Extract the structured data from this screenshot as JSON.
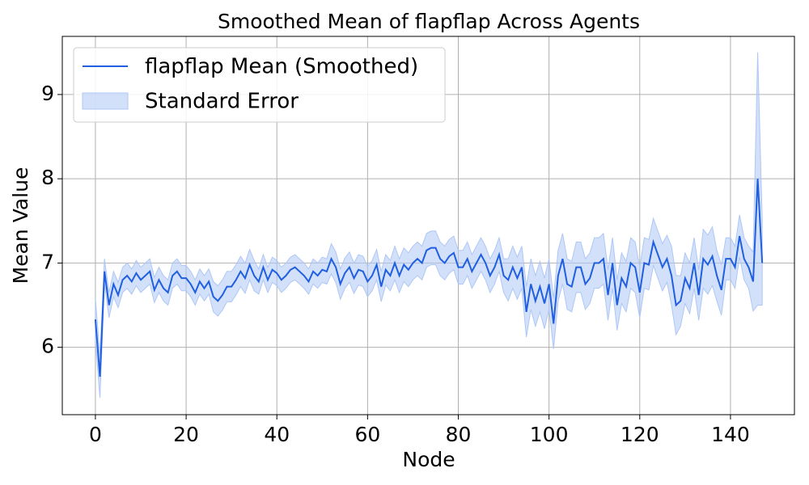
{
  "chart_data": {
    "type": "line",
    "title": "Smoothed Mean of flapflap Across Agents",
    "x_label": "Node",
    "y_label": "Mean Value",
    "x": [
      0,
      1,
      2,
      3,
      4,
      5,
      6,
      7,
      8,
      9,
      10,
      11,
      12,
      13,
      14,
      15,
      16,
      17,
      18,
      19,
      20,
      21,
      22,
      23,
      24,
      25,
      26,
      27,
      28,
      29,
      30,
      31,
      32,
      33,
      34,
      35,
      36,
      37,
      38,
      39,
      40,
      41,
      42,
      43,
      44,
      45,
      46,
      47,
      48,
      49,
      50,
      51,
      52,
      53,
      54,
      55,
      56,
      57,
      58,
      59,
      60,
      61,
      62,
      63,
      64,
      65,
      66,
      67,
      68,
      69,
      70,
      71,
      72,
      73,
      74,
      75,
      76,
      77,
      78,
      79,
      80,
      81,
      82,
      83,
      84,
      85,
      86,
      87,
      88,
      89,
      90,
      91,
      92,
      93,
      94,
      95,
      96,
      97,
      98,
      99,
      100,
      101,
      102,
      103,
      104,
      105,
      106,
      107,
      108,
      109,
      110,
      111,
      112,
      113,
      114,
      115,
      116,
      117,
      118,
      119,
      120,
      121,
      122,
      123,
      124,
      125,
      126,
      127,
      128,
      129,
      130,
      131,
      132,
      133,
      134,
      135,
      136,
      137,
      138,
      139,
      140,
      141,
      142,
      143,
      144,
      145,
      146,
      147
    ],
    "series": [
      {
        "name": "flapflap Mean (Smoothed)",
        "color": "#1f5fe0",
        "values": [
          6.33,
          5.65,
          6.9,
          6.5,
          6.75,
          6.62,
          6.8,
          6.85,
          6.78,
          6.88,
          6.8,
          6.85,
          6.9,
          6.68,
          6.8,
          6.7,
          6.65,
          6.85,
          6.9,
          6.82,
          6.82,
          6.75,
          6.65,
          6.78,
          6.7,
          6.78,
          6.6,
          6.55,
          6.62,
          6.72,
          6.72,
          6.8,
          6.9,
          6.82,
          6.98,
          6.85,
          6.78,
          6.95,
          6.8,
          6.92,
          6.88,
          6.8,
          6.85,
          6.92,
          6.95,
          6.9,
          6.85,
          6.78,
          6.9,
          6.85,
          6.92,
          6.9,
          7.05,
          6.95,
          6.75,
          6.88,
          6.95,
          6.82,
          6.92,
          6.9,
          6.78,
          6.85,
          6.98,
          6.72,
          6.92,
          6.85,
          7.0,
          6.85,
          6.98,
          6.92,
          7.0,
          7.05,
          7.0,
          7.15,
          7.18,
          7.18,
          7.05,
          7.0,
          7.08,
          7.12,
          6.95,
          6.95,
          7.05,
          6.9,
          7.0,
          7.1,
          7.0,
          6.85,
          6.95,
          7.1,
          6.85,
          6.8,
          6.95,
          6.82,
          6.95,
          6.42,
          6.75,
          6.55,
          6.72,
          6.52,
          6.75,
          6.28,
          6.85,
          7.05,
          6.75,
          6.72,
          6.95,
          6.95,
          6.75,
          6.82,
          7.0,
          7.0,
          7.05,
          6.62,
          7.0,
          6.5,
          6.82,
          6.72,
          7.0,
          6.95,
          6.65,
          7.0,
          6.98,
          7.25,
          7.1,
          6.95,
          7.05,
          6.85,
          6.5,
          6.55,
          6.82,
          6.7,
          7.0,
          6.62,
          7.05,
          6.98,
          7.08,
          6.85,
          6.68,
          7.05,
          7.05,
          6.95,
          7.32,
          7.05,
          6.95,
          6.78,
          8.0,
          7.0
        ]
      },
      {
        "name": "Standard Error",
        "color": "#aec7f5",
        "values": [
          0.25,
          0.25,
          0.15,
          0.15,
          0.15,
          0.15,
          0.15,
          0.15,
          0.15,
          0.15,
          0.15,
          0.15,
          0.15,
          0.15,
          0.15,
          0.15,
          0.15,
          0.15,
          0.15,
          0.15,
          0.15,
          0.15,
          0.15,
          0.15,
          0.15,
          0.15,
          0.18,
          0.18,
          0.18,
          0.18,
          0.18,
          0.18,
          0.18,
          0.18,
          0.18,
          0.18,
          0.15,
          0.15,
          0.15,
          0.15,
          0.15,
          0.15,
          0.15,
          0.15,
          0.15,
          0.15,
          0.15,
          0.15,
          0.15,
          0.15,
          0.15,
          0.15,
          0.18,
          0.18,
          0.18,
          0.18,
          0.18,
          0.18,
          0.18,
          0.18,
          0.18,
          0.18,
          0.18,
          0.18,
          0.18,
          0.18,
          0.2,
          0.2,
          0.2,
          0.2,
          0.2,
          0.2,
          0.2,
          0.2,
          0.2,
          0.2,
          0.2,
          0.2,
          0.2,
          0.2,
          0.2,
          0.2,
          0.2,
          0.2,
          0.2,
          0.2,
          0.2,
          0.2,
          0.2,
          0.2,
          0.2,
          0.25,
          0.25,
          0.25,
          0.25,
          0.3,
          0.3,
          0.3,
          0.3,
          0.3,
          0.3,
          0.3,
          0.3,
          0.3,
          0.3,
          0.3,
          0.3,
          0.3,
          0.3,
          0.3,
          0.3,
          0.3,
          0.3,
          0.3,
          0.3,
          0.3,
          0.3,
          0.3,
          0.3,
          0.3,
          0.3,
          0.3,
          0.3,
          0.28,
          0.28,
          0.28,
          0.28,
          0.35,
          0.35,
          0.3,
          0.3,
          0.3,
          0.3,
          0.3,
          0.35,
          0.35,
          0.35,
          0.3,
          0.3,
          0.25,
          0.25,
          0.25,
          0.25,
          0.25,
          0.25,
          0.35,
          1.5,
          0.5
        ]
      }
    ],
    "xlim": [
      -7.3,
      154.1
    ],
    "ylim": [
      5.2,
      9.69
    ],
    "xticks": [
      0,
      20,
      40,
      60,
      80,
      100,
      120,
      140
    ],
    "yticks": [
      6,
      7,
      8,
      9
    ],
    "grid": true,
    "legend": "upper left"
  }
}
